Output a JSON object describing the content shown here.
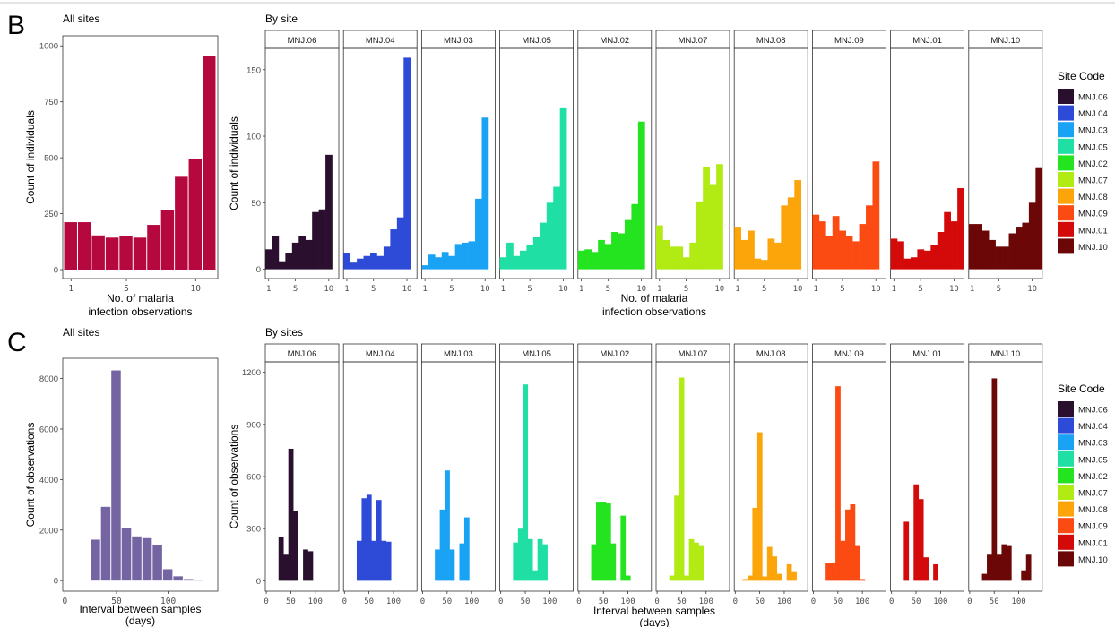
{
  "panels": {
    "B": {
      "letter": "B",
      "all_title": "All sites",
      "site_title": "By site"
    },
    "C": {
      "letter": "C",
      "all_title": "All sites",
      "site_title": "By sites"
    }
  },
  "colors": {
    "MNJ.06": "#2a0f2e",
    "MNJ.04": "#2d4bd6",
    "MNJ.03": "#1aa2f5",
    "MNJ.05": "#1fdfa4",
    "MNJ.02": "#23e41f",
    "MNJ.07": "#b2ea14",
    "MNJ.08": "#fca50a",
    "MNJ.09": "#fb4a12",
    "MNJ.01": "#d40a0a",
    "MNJ.10": "#6b0707",
    "all_B": "#b5083f",
    "all_C": "#7564a2"
  },
  "legend": {
    "title": "Site Code",
    "items": [
      "MNJ.06",
      "MNJ.04",
      "MNJ.03",
      "MNJ.05",
      "MNJ.02",
      "MNJ.07",
      "MNJ.08",
      "MNJ.09",
      "MNJ.01",
      "MNJ.10"
    ]
  },
  "chart_data": [
    {
      "type": "bar",
      "panel": "B-all",
      "title": "All sites",
      "xlabel": "No. of malaria\ninfection observations",
      "ylabel": "Count of individuals",
      "x": [
        1,
        2,
        3,
        4,
        5,
        6,
        7,
        8,
        9,
        10,
        11
      ],
      "values": [
        212,
        212,
        153,
        143,
        152,
        143,
        200,
        268,
        415,
        495,
        955
      ],
      "xticks": [
        1,
        5,
        10
      ],
      "yticks": [
        0,
        250,
        500,
        750,
        1000
      ],
      "ylim": [
        0,
        1000
      ]
    },
    {
      "type": "bar",
      "panel": "B-by-site",
      "title": "By site",
      "xlabel": "No. of malaria\ninfection observations",
      "ylabel": "Count of individuals",
      "x": [
        1,
        2,
        3,
        4,
        5,
        6,
        7,
        8,
        9,
        10,
        11
      ],
      "xticks": [
        1,
        5,
        10
      ],
      "yticks": [
        0,
        50,
        100,
        150
      ],
      "ylim": [
        0,
        165
      ],
      "series": [
        {
          "name": "MNJ.06",
          "values": [
            15,
            25,
            6,
            12,
            20,
            25,
            22,
            43,
            45,
            86,
            null
          ]
        },
        {
          "name": "MNJ.04",
          "values": [
            12,
            5,
            8,
            10,
            12,
            10,
            17,
            30,
            39,
            159,
            null
          ]
        },
        {
          "name": "MNJ.03",
          "values": [
            3,
            11,
            9,
            13,
            10,
            19,
            20,
            21,
            53,
            114,
            null
          ]
        },
        {
          "name": "MNJ.05",
          "values": [
            9,
            20,
            10,
            14,
            18,
            24,
            35,
            50,
            62,
            121,
            null
          ]
        },
        {
          "name": "MNJ.02",
          "values": [
            14,
            15,
            13,
            22,
            19,
            28,
            27,
            37,
            49,
            111,
            null
          ]
        },
        {
          "name": "MNJ.07",
          "values": [
            33,
            22,
            17,
            17,
            9,
            20,
            51,
            77,
            64,
            79,
            null
          ]
        },
        {
          "name": "MNJ.08",
          "values": [
            32,
            22,
            29,
            8,
            7,
            23,
            20,
            48,
            54,
            67,
            null
          ]
        },
        {
          "name": "MNJ.09",
          "values": [
            41,
            36,
            25,
            40,
            29,
            25,
            21,
            34,
            48,
            81,
            null
          ]
        },
        {
          "name": "MNJ.01",
          "values": [
            23,
            21,
            8,
            9,
            15,
            14,
            18,
            28,
            43,
            36,
            61
          ]
        },
        {
          "name": "MNJ.10",
          "values": [
            34,
            34,
            29,
            22,
            17,
            17,
            27,
            32,
            35,
            50,
            76
          ]
        }
      ]
    },
    {
      "type": "bar",
      "panel": "C-all",
      "title": "All sites",
      "xlabel": "Interval between samples\n(days)",
      "ylabel": "Count of observations",
      "bin_width": 10,
      "x": [
        30,
        40,
        50,
        60,
        70,
        80,
        90,
        100,
        110,
        120,
        130
      ],
      "values": [
        1620,
        2920,
        8320,
        2080,
        1750,
        1680,
        1410,
        450,
        170,
        60,
        30
      ],
      "xticks": [
        0,
        50,
        100
      ],
      "yticks": [
        0,
        2000,
        4000,
        6000,
        8000
      ],
      "ylim": [
        0,
        9000
      ]
    },
    {
      "type": "bar",
      "panel": "C-by-site",
      "title": "By sites",
      "xlabel": "Interval between samples\n(days)",
      "ylabel": "Count of observations",
      "bin_width": 10,
      "xticks": [
        0,
        50,
        100
      ],
      "yticks": [
        0,
        300,
        600,
        900,
        1200
      ],
      "ylim": [
        0,
        1260
      ],
      "series": [
        {
          "name": "MNJ.06",
          "x": [
            30,
            40,
            50,
            60,
            70,
            80,
            90
          ],
          "values": [
            250,
            150,
            760,
            400,
            0,
            180,
            170
          ]
        },
        {
          "name": "MNJ.04",
          "x": [
            30,
            40,
            50,
            60,
            70,
            80,
            90
          ],
          "values": [
            230,
            475,
            495,
            230,
            465,
            230,
            225
          ]
        },
        {
          "name": "MNJ.03",
          "x": [
            30,
            40,
            50,
            60,
            70,
            80,
            90
          ],
          "values": [
            180,
            410,
            635,
            180,
            0,
            215,
            365
          ]
        },
        {
          "name": "MNJ.05",
          "x": [
            30,
            40,
            50,
            60,
            70,
            80,
            90
          ],
          "values": [
            220,
            300,
            1130,
            240,
            60,
            240,
            210
          ]
        },
        {
          "name": "MNJ.02",
          "x": [
            30,
            40,
            50,
            60,
            70,
            80,
            90,
            100
          ],
          "values": [
            210,
            450,
            455,
            445,
            215,
            0,
            375,
            30
          ]
        },
        {
          "name": "MNJ.07",
          "x": [
            20,
            30,
            40,
            50,
            60,
            70,
            80,
            90
          ],
          "values": [
            0,
            30,
            490,
            1170,
            30,
            240,
            220,
            200
          ]
        },
        {
          "name": "MNJ.08",
          "x": [
            20,
            30,
            40,
            50,
            60,
            70,
            80,
            90,
            100,
            110,
            120
          ],
          "values": [
            10,
            30,
            420,
            855,
            25,
            195,
            140,
            40,
            0,
            95,
            50
          ]
        },
        {
          "name": "MNJ.09",
          "x": [
            30,
            40,
            50,
            60,
            70,
            80,
            90,
            100
          ],
          "values": [
            105,
            105,
            1120,
            230,
            410,
            440,
            200,
            10
          ]
        },
        {
          "name": "MNJ.01",
          "x": [
            30,
            40,
            50,
            60,
            70,
            80,
            90
          ],
          "values": [
            340,
            0,
            555,
            470,
            135,
            0,
            95
          ]
        },
        {
          "name": "MNJ.10",
          "x": [
            30,
            40,
            50,
            60,
            70,
            80,
            90,
            100,
            110,
            120
          ],
          "values": [
            40,
            150,
            1165,
            150,
            210,
            200,
            0,
            0,
            60,
            150
          ]
        }
      ]
    }
  ]
}
